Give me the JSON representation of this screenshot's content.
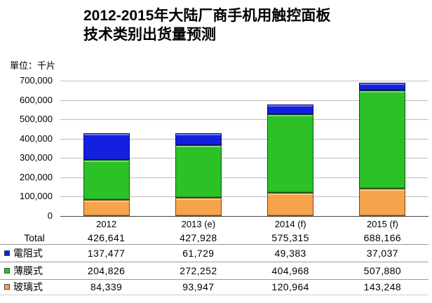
{
  "title": {
    "line1": "2012-2015年大陆厂商手机用触控面板",
    "line2": "技术类别出货量预测"
  },
  "unit_label": "單位：千片",
  "chart_data": {
    "type": "bar",
    "stacked": true,
    "grid": true,
    "legend_position": "table-below",
    "categories": [
      "2012",
      "2013 (e)",
      "2014 (f)",
      "2015 (f)"
    ],
    "series": [
      {
        "name": "電阻式",
        "color": "#1420E0",
        "values": [
          137477,
          61729,
          49383,
          37037
        ]
      },
      {
        "name": "薄膜式",
        "color": "#2BC127",
        "values": [
          204826,
          272252,
          404968,
          507880
        ]
      },
      {
        "name": "玻璃式",
        "color": "#F5A44C",
        "values": [
          84339,
          93947,
          120964,
          143248
        ]
      }
    ],
    "totals": [
      426641,
      427928,
      575315,
      688166
    ],
    "ylim": [
      0,
      700000
    ],
    "yticks": [
      {
        "label": "700,000",
        "value": 700000
      },
      {
        "label": "600,000",
        "value": 600000
      },
      {
        "label": "500,000",
        "value": 500000
      },
      {
        "label": "400,000",
        "value": 400000
      },
      {
        "label": "300,000",
        "value": 300000
      },
      {
        "label": "200,000",
        "value": 200000
      },
      {
        "label": "100,000",
        "value": 100000
      },
      {
        "label": "0",
        "value": 0
      }
    ]
  },
  "table": {
    "rows": [
      {
        "label": "Total",
        "swatch": null,
        "values": [
          "426,641",
          "427,928",
          "575,315",
          "688,166"
        ]
      },
      {
        "label": "電阻式",
        "swatch": "#1420E0",
        "values": [
          "137,477",
          "61,729",
          "49,383",
          "37,037"
        ]
      },
      {
        "label": "薄膜式",
        "swatch": "#2BC127",
        "values": [
          "204,826",
          "272,252",
          "404,968",
          "507,880"
        ]
      },
      {
        "label": "玻璃式",
        "swatch": "#F5A44C",
        "values": [
          "84,339",
          "93,947",
          "120,964",
          "143,248"
        ]
      }
    ]
  }
}
